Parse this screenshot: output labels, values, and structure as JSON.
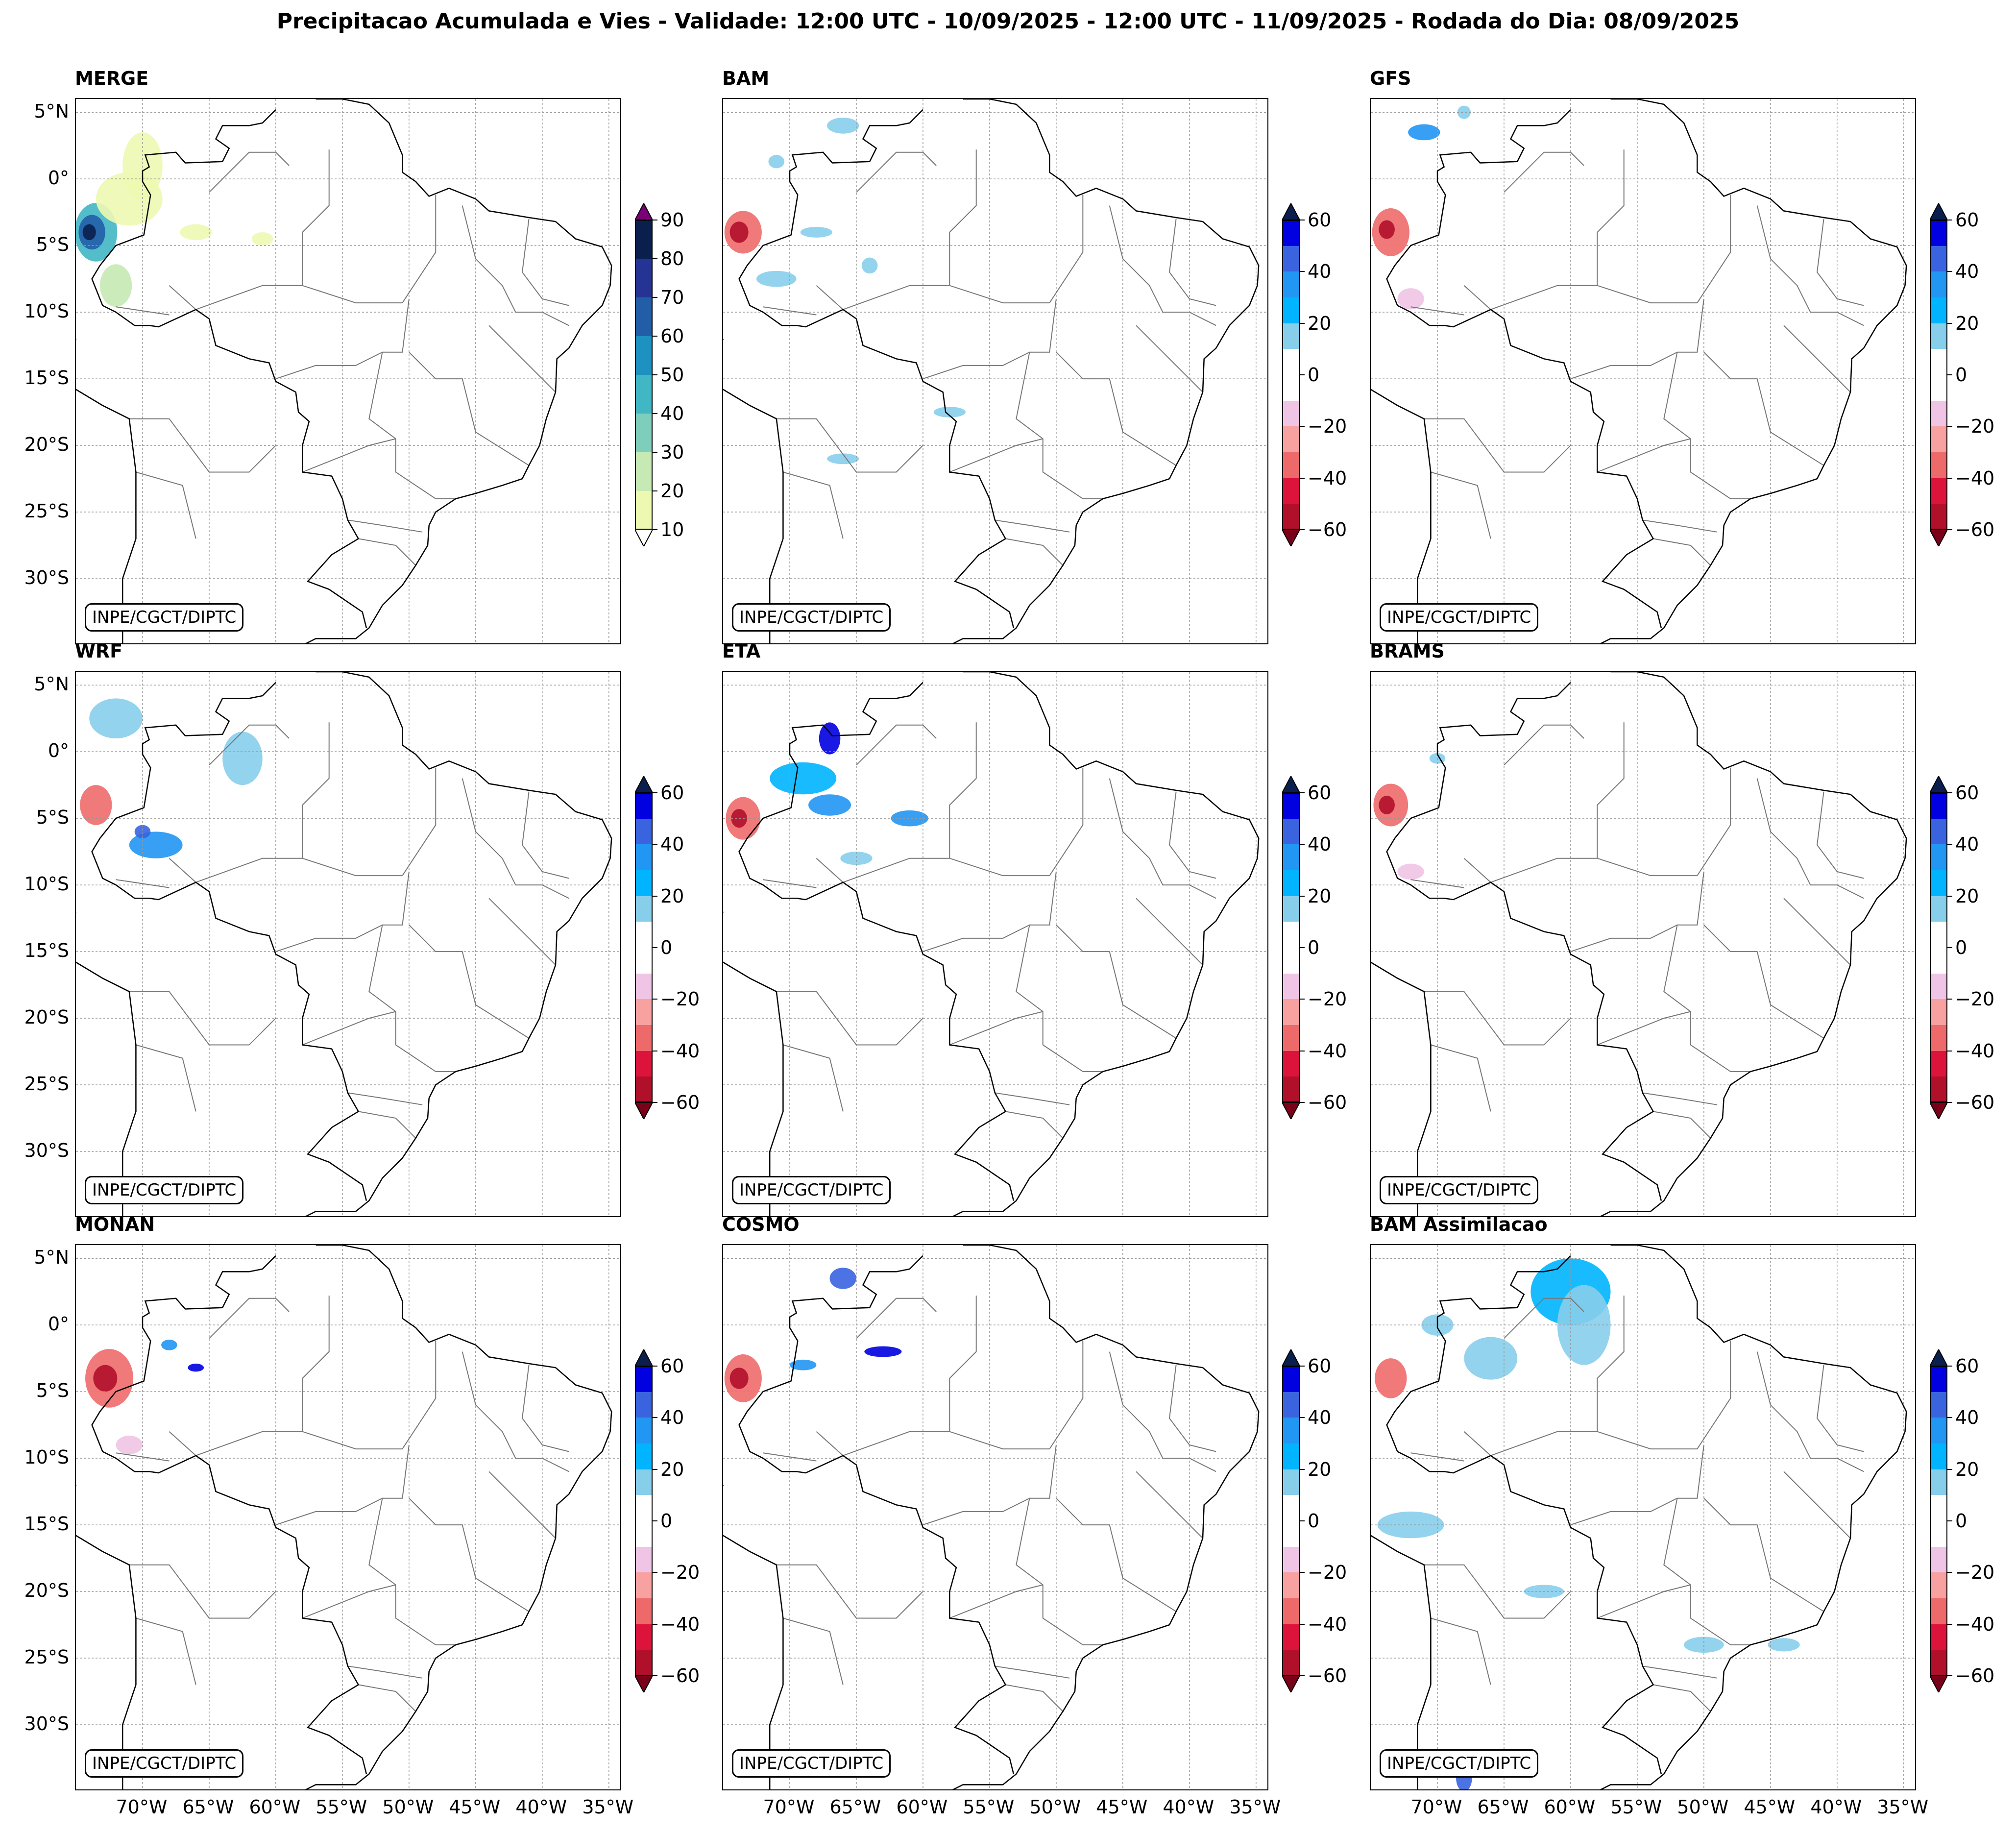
{
  "figure_title": "Precipitacao Acumulada e Vies - Validade: 12:00 UTC - 10/09/2025 - 12:00 UTC - 11/09/2025 - Rodada do Dia: 08/09/2025",
  "credit": "INPE/CGCT/DIPTC",
  "lat_labels": [
    "5°N",
    "0°",
    "5°S",
    "10°S",
    "15°S",
    "20°S",
    "25°S",
    "30°S"
  ],
  "lon_labels": [
    "70°W",
    "65°W",
    "60°W",
    "55°W",
    "50°W",
    "45°W",
    "40°W",
    "35°W"
  ],
  "colorbar_precip": {
    "ticks": [
      "90",
      "80",
      "70",
      "60",
      "50",
      "40",
      "30",
      "20",
      "10"
    ],
    "colors": [
      "#0b1f4f",
      "#253494",
      "#225ea8",
      "#1d91c0",
      "#41b6c4",
      "#7fcdbb",
      "#c7e9b4",
      "#edf8b1"
    ],
    "extend_top": "#7a0177",
    "extend_bottom": "#ffffff"
  },
  "colorbar_bias": {
    "ticks": [
      "60",
      "40",
      "20",
      "0",
      "−20",
      "−40",
      "−60"
    ],
    "colors": [
      "#0000e0",
      "#3a63e0",
      "#2196f3",
      "#00b4ff",
      "#87ceeb",
      "#ffffff",
      "#ffffff",
      "#f0c4e4",
      "#f7a1a1",
      "#ee6a6a",
      "#dc143c",
      "#b0102a"
    ],
    "extend_top": "#0b1f4f",
    "extend_bottom": "#7a0019"
  },
  "panels": [
    {
      "id": "merge",
      "title": "MERGE",
      "type": "precip"
    },
    {
      "id": "bam",
      "title": "BAM",
      "type": "bias"
    },
    {
      "id": "gfs",
      "title": "GFS",
      "type": "bias"
    },
    {
      "id": "wrf",
      "title": "WRF",
      "type": "bias"
    },
    {
      "id": "eta",
      "title": "ETA",
      "type": "bias"
    },
    {
      "id": "brams",
      "title": "BRAMS",
      "type": "bias"
    },
    {
      "id": "monan",
      "title": "MONAN",
      "type": "bias"
    },
    {
      "id": "cosmo",
      "title": "COSMO",
      "type": "bias"
    },
    {
      "id": "bam-assim",
      "title": "BAM Assimilacao",
      "type": "bias"
    }
  ]
}
